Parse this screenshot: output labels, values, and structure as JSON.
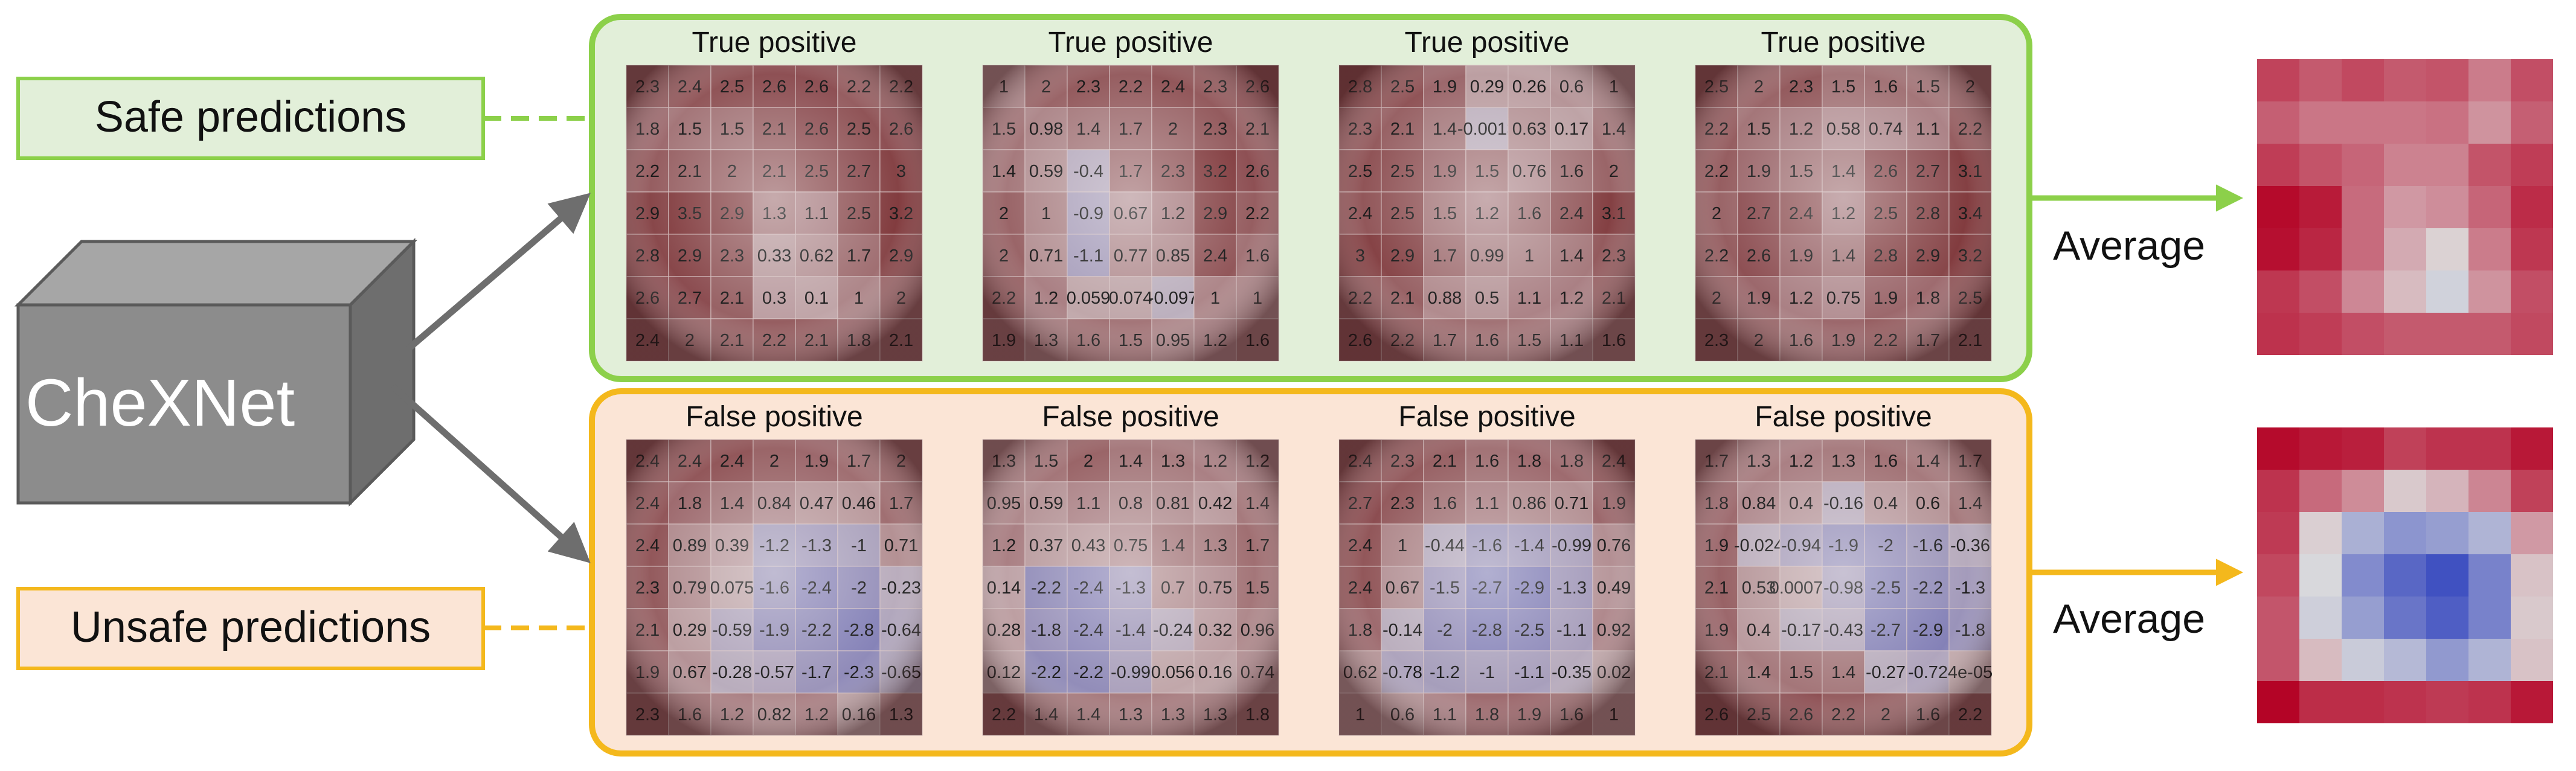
{
  "model": {
    "label": "CheXNet"
  },
  "groups": {
    "safe": {
      "label": "Safe predictions",
      "average_label": "Average"
    },
    "unsafe": {
      "label": "Unsafe predictions",
      "average_label": "Average"
    }
  },
  "colors": {
    "safe_border": "#8cd04a",
    "safe_fill": "#e2efd9",
    "unsafe_border": "#f4b81c",
    "unsafe_fill": "#fbe5d6",
    "cube_front": "#8c8c8c",
    "cube_side": "#6e6e6e",
    "cube_top": "#a6a6a6",
    "arrow_gray": "#6e6e6e"
  },
  "safe_maps": [
    {
      "title": "True positive",
      "grid": [
        [
          "2.3",
          "2.4",
          "2.5",
          "2.6",
          "2.6",
          "2.2",
          "2.2"
        ],
        [
          "1.8",
          "1.5",
          "1.5",
          "2.1",
          "2.6",
          "2.5",
          "2.6"
        ],
        [
          "2.2",
          "2.1",
          "2",
          "2.1",
          "2.5",
          "2.7",
          "3"
        ],
        [
          "2.9",
          "3.5",
          "2.9",
          "1.3",
          "1.1",
          "2.5",
          "3.2"
        ],
        [
          "2.8",
          "2.9",
          "2.3",
          "0.33",
          "0.62",
          "1.7",
          "2.9"
        ],
        [
          "2.6",
          "2.7",
          "2.1",
          "0.3",
          "0.1",
          "1",
          "2"
        ],
        [
          "2.4",
          "2",
          "2.1",
          "2.2",
          "2.1",
          "1.8",
          "2.1"
        ]
      ]
    },
    {
      "title": "True positive",
      "grid": [
        [
          "1",
          "2",
          "2.3",
          "2.2",
          "2.4",
          "2.3",
          "2.6"
        ],
        [
          "1.5",
          "0.98",
          "1.4",
          "1.7",
          "2",
          "2.3",
          "2.1"
        ],
        [
          "1.4",
          "0.59",
          "-0.4",
          "1.7",
          "2.3",
          "3.2",
          "2.6"
        ],
        [
          "2",
          "1",
          "-0.9",
          "0.67",
          "1.2",
          "2.9",
          "2.2"
        ],
        [
          "2",
          "0.71",
          "-1.1",
          "0.77",
          "0.85",
          "2.4",
          "1.6"
        ],
        [
          "2.2",
          "1.2",
          "0.059",
          "0.074",
          "-0.097",
          "1",
          "1"
        ],
        [
          "1.9",
          "1.3",
          "1.6",
          "1.5",
          "0.95",
          "1.2",
          "1.6"
        ]
      ]
    },
    {
      "title": "True positive",
      "grid": [
        [
          "2.8",
          "2.5",
          "1.9",
          "0.29",
          "0.26",
          "0.6",
          "1"
        ],
        [
          "2.3",
          "2.1",
          "1.4",
          "-0.0013",
          "0.63",
          "0.17",
          "1.4"
        ],
        [
          "2.5",
          "2.5",
          "1.9",
          "1.5",
          "0.76",
          "1.6",
          "2"
        ],
        [
          "2.4",
          "2.5",
          "1.5",
          "1.2",
          "1.6",
          "2.4",
          "3.1"
        ],
        [
          "3",
          "2.9",
          "1.7",
          "0.99",
          "1",
          "1.4",
          "2.3"
        ],
        [
          "2.2",
          "2.1",
          "0.88",
          "0.5",
          "1.1",
          "1.2",
          "2.1"
        ],
        [
          "2.6",
          "2.2",
          "1.7",
          "1.6",
          "1.5",
          "1.1",
          "1.6"
        ]
      ]
    },
    {
      "title": "True positive",
      "grid": [
        [
          "2.5",
          "2",
          "2.3",
          "1.5",
          "1.6",
          "1.5",
          "2"
        ],
        [
          "2.2",
          "1.5",
          "1.2",
          "0.58",
          "0.74",
          "1.1",
          "2.2"
        ],
        [
          "2.2",
          "1.9",
          "1.5",
          "1.4",
          "2.6",
          "2.7",
          "3.1"
        ],
        [
          "2",
          "2.7",
          "2.4",
          "1.2",
          "2.5",
          "2.8",
          "3.4"
        ],
        [
          "2.2",
          "2.6",
          "1.9",
          "1.4",
          "2.8",
          "2.9",
          "3.2"
        ],
        [
          "2",
          "1.9",
          "1.2",
          "0.75",
          "1.9",
          "1.8",
          "2.5"
        ],
        [
          "2.3",
          "2",
          "1.6",
          "1.9",
          "2.2",
          "1.7",
          "2.1"
        ]
      ]
    }
  ],
  "unsafe_maps": [
    {
      "title": "False positive",
      "grid": [
        [
          "2.4",
          "2.4",
          "2.4",
          "2",
          "1.9",
          "1.7",
          "2"
        ],
        [
          "2.4",
          "1.8",
          "1.4",
          "0.84",
          "0.47",
          "0.46",
          "1.7"
        ],
        [
          "2.4",
          "0.89",
          "0.39",
          "-1.2",
          "-1.3",
          "-1",
          "0.71"
        ],
        [
          "2.3",
          "0.79",
          "0.075",
          "-1.6",
          "-2.4",
          "-2",
          "-0.23"
        ],
        [
          "2.1",
          "0.29",
          "-0.59",
          "-1.9",
          "-2.2",
          "-2.8",
          "-0.64"
        ],
        [
          "1.9",
          "0.67",
          "-0.28",
          "-0.57",
          "-1.7",
          "-2.3",
          "-0.65"
        ],
        [
          "2.3",
          "1.6",
          "1.2",
          "0.82",
          "1.2",
          "0.16",
          "1.3"
        ]
      ]
    },
    {
      "title": "False positive",
      "grid": [
        [
          "1.3",
          "1.5",
          "2",
          "1.4",
          "1.3",
          "1.2",
          "1.2"
        ],
        [
          "0.95",
          "0.59",
          "1.1",
          "0.8",
          "0.81",
          "0.42",
          "1.4"
        ],
        [
          "1.2",
          "0.37",
          "0.43",
          "0.75",
          "1.4",
          "1.3",
          "1.7"
        ],
        [
          "0.14",
          "-2.2",
          "-2.4",
          "-1.3",
          "0.7",
          "0.75",
          "1.5"
        ],
        [
          "0.28",
          "-1.8",
          "-2.4",
          "-1.4",
          "-0.24",
          "0.32",
          "0.96"
        ],
        [
          "0.12",
          "-2.2",
          "-2.2",
          "-0.99",
          "0.056",
          "0.16",
          "0.74"
        ],
        [
          "2.2",
          "1.4",
          "1.4",
          "1.3",
          "1.3",
          "1.3",
          "1.8"
        ]
      ]
    },
    {
      "title": "False positive",
      "grid": [
        [
          "2.4",
          "2.3",
          "2.1",
          "1.6",
          "1.8",
          "1.8",
          "2.4"
        ],
        [
          "2.7",
          "2.3",
          "1.6",
          "1.1",
          "0.86",
          "0.71",
          "1.9"
        ],
        [
          "2.4",
          "1",
          "-0.44",
          "-1.6",
          "-1.4",
          "-0.99",
          "0.76"
        ],
        [
          "2.4",
          "0.67",
          "-1.5",
          "-2.7",
          "-2.9",
          "-1.3",
          "0.49"
        ],
        [
          "1.8",
          "-0.14",
          "-2",
          "-2.8",
          "-2.5",
          "-1.1",
          "0.92"
        ],
        [
          "0.62",
          "-0.78",
          "-1.2",
          "-1",
          "-1.1",
          "-0.35",
          "0.02"
        ],
        [
          "1",
          "0.6",
          "1.1",
          "1.8",
          "1.9",
          "1.6",
          "1"
        ]
      ]
    },
    {
      "title": "False positive",
      "grid": [
        [
          "1.7",
          "1.3",
          "1.2",
          "1.3",
          "1.6",
          "1.4",
          "1.7"
        ],
        [
          "1.8",
          "0.84",
          "0.4",
          "-0.16",
          "0.4",
          "0.6",
          "1.4"
        ],
        [
          "1.9",
          "-0.024",
          "-0.94",
          "-1.9",
          "-2",
          "-1.6",
          "-0.36"
        ],
        [
          "2.1",
          "0.53",
          "0.00078",
          "-0.98",
          "-2.5",
          "-2.2",
          "-1.3"
        ],
        [
          "1.9",
          "0.4",
          "-0.17",
          "-0.43",
          "-2.7",
          "-2.9",
          "-1.8"
        ],
        [
          "2.1",
          "1.4",
          "1.5",
          "1.4",
          "-0.27",
          "-0.72",
          "4e-05"
        ],
        [
          "2.6",
          "2.5",
          "2.6",
          "2.2",
          "2",
          "1.6",
          "2.2"
        ]
      ]
    }
  ],
  "safe_average": [
    [
      2.7,
      2.3,
      2.6,
      2.3,
      2.4,
      1.7,
      2.5
    ],
    [
      2.2,
      1.8,
      1.8,
      1.8,
      1.9,
      1.3,
      2.2
    ],
    [
      2.8,
      2.4,
      2.1,
      1.6,
      1.6,
      2.4,
      2.8
    ],
    [
      3.7,
      3.4,
      2.0,
      1.2,
      1.4,
      2.1,
      3.1
    ],
    [
      3.6,
      3.2,
      2.0,
      0.9,
      0.2,
      1.7,
      2.9
    ],
    [
      2.9,
      2.5,
      1.5,
      0.6,
      -0.3,
      1.3,
      2.5
    ],
    [
      3.0,
      2.8,
      2.5,
      2.3,
      2.3,
      2.3,
      2.6
    ]
  ],
  "unsafe_average": [
    [
      3.1,
      2.9,
      2.8,
      2.3,
      2.5,
      2.5,
      2.9
    ],
    [
      2.5,
      1.7,
      1.2,
      0.3,
      0.6,
      1.3,
      2.3
    ],
    [
      2.4,
      0.2,
      -1.0,
      -1.6,
      -1.4,
      -0.9,
      1.0
    ],
    [
      2.2,
      -0.1,
      -1.8,
      -2.6,
      -3.1,
      -2.0,
      0.4
    ],
    [
      2.0,
      -0.3,
      -1.4,
      -2.3,
      -2.8,
      -2.0,
      0.3
    ],
    [
      2.0,
      0.5,
      -0.4,
      -0.8,
      -1.5,
      -0.9,
      0.4
    ],
    [
      3.3,
      2.6,
      2.6,
      2.5,
      2.4,
      2.5,
      2.9
    ]
  ]
}
